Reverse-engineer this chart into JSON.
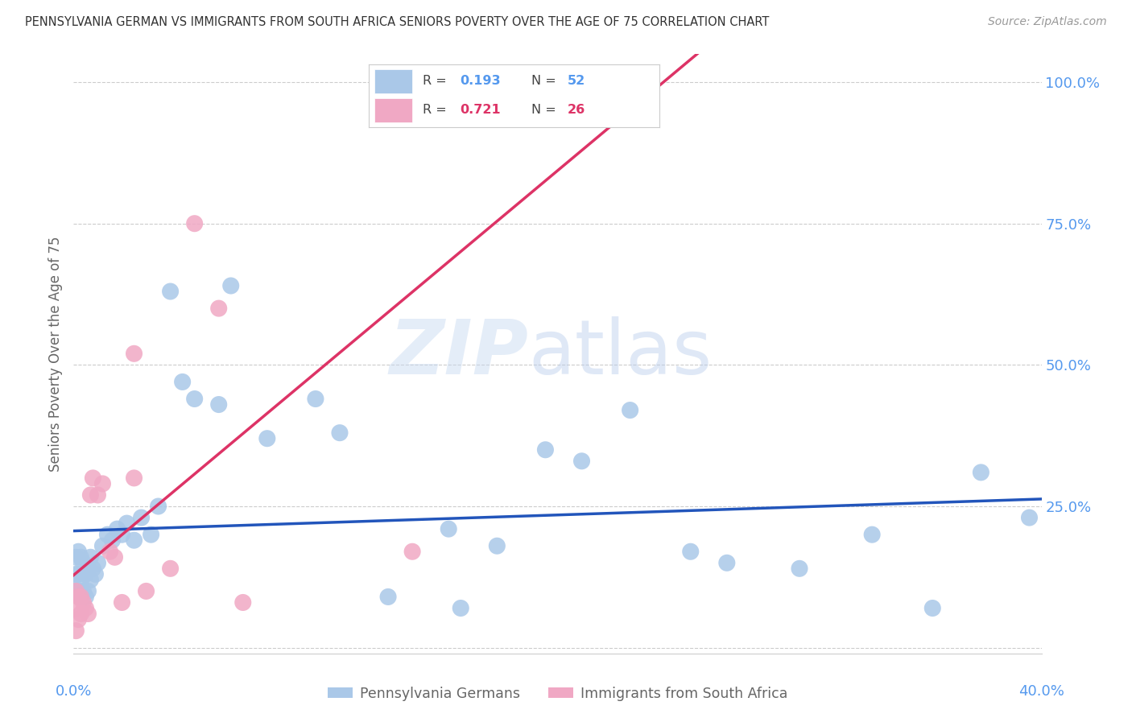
{
  "title": "PENNSYLVANIA GERMAN VS IMMIGRANTS FROM SOUTH AFRICA SENIORS POVERTY OVER THE AGE OF 75 CORRELATION CHART",
  "source": "Source: ZipAtlas.com",
  "ylabel": "Seniors Poverty Over the Age of 75",
  "xlim": [
    0.0,
    0.4
  ],
  "ylim": [
    -0.01,
    1.05
  ],
  "watermark_text": "ZIPatlas",
  "blue_R": 0.193,
  "blue_N": 52,
  "pink_R": 0.721,
  "pink_N": 26,
  "blue_color": "#aac8e8",
  "pink_color": "#f0a8c4",
  "blue_line_color": "#2255bb",
  "pink_line_color": "#dd3366",
  "title_color": "#333333",
  "axis_color": "#5599ee",
  "source_color": "#999999",
  "bg_color": "#ffffff",
  "grid_color": "#cccccc",
  "blue_x": [
    0.001,
    0.001,
    0.001,
    0.002,
    0.002,
    0.002,
    0.003,
    0.003,
    0.003,
    0.004,
    0.004,
    0.005,
    0.005,
    0.006,
    0.006,
    0.007,
    0.007,
    0.008,
    0.009,
    0.01,
    0.012,
    0.014,
    0.016,
    0.018,
    0.02,
    0.022,
    0.025,
    0.028,
    0.032,
    0.035,
    0.04,
    0.045,
    0.05,
    0.06,
    0.065,
    0.08,
    0.1,
    0.11,
    0.13,
    0.155,
    0.16,
    0.175,
    0.195,
    0.21,
    0.23,
    0.255,
    0.27,
    0.3,
    0.33,
    0.355,
    0.375,
    0.395
  ],
  "blue_y": [
    0.1,
    0.13,
    0.16,
    0.1,
    0.13,
    0.17,
    0.09,
    0.12,
    0.16,
    0.1,
    0.15,
    0.09,
    0.13,
    0.1,
    0.14,
    0.12,
    0.16,
    0.14,
    0.13,
    0.15,
    0.18,
    0.2,
    0.19,
    0.21,
    0.2,
    0.22,
    0.19,
    0.23,
    0.2,
    0.25,
    0.63,
    0.47,
    0.44,
    0.43,
    0.64,
    0.37,
    0.44,
    0.38,
    0.09,
    0.21,
    0.07,
    0.18,
    0.35,
    0.33,
    0.42,
    0.17,
    0.15,
    0.14,
    0.2,
    0.07,
    0.31,
    0.23
  ],
  "pink_x": [
    0.001,
    0.001,
    0.001,
    0.002,
    0.002,
    0.003,
    0.003,
    0.004,
    0.005,
    0.006,
    0.007,
    0.008,
    0.01,
    0.012,
    0.015,
    0.017,
    0.02,
    0.025,
    0.025,
    0.03,
    0.04,
    0.05,
    0.06,
    0.07,
    0.14,
    0.16
  ],
  "pink_y": [
    0.03,
    0.07,
    0.1,
    0.05,
    0.09,
    0.06,
    0.09,
    0.08,
    0.07,
    0.06,
    0.27,
    0.3,
    0.27,
    0.29,
    0.17,
    0.16,
    0.08,
    0.52,
    0.3,
    0.1,
    0.14,
    0.75,
    0.6,
    0.08,
    0.17,
    1.0
  ],
  "legend_blue": "Pennsylvania Germans",
  "legend_pink": "Immigrants from South Africa"
}
